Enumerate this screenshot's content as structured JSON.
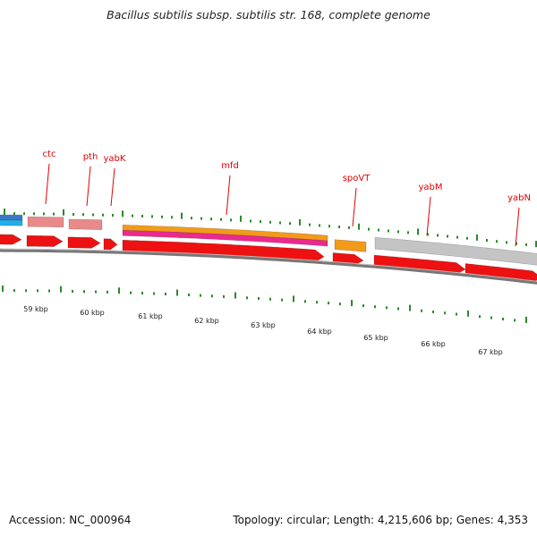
{
  "header": {
    "title": "Bacillus subtilis subsp. subtilis str. 168, complete genome"
  },
  "footer": {
    "accession": "Accession: NC_000964",
    "summary": "Topology: circular; Length: 4,215,606 bp; Genes: 4,353"
  },
  "colors": {
    "cds": "#ee1111",
    "gene_label": "#e00000",
    "tick": "#2a8a2a",
    "backbone": "#777777",
    "salmon": "#e88a8a",
    "orange": "#f39a1a",
    "magenta": "#ea2a8e",
    "gray_feature": "#c4c4c4",
    "blue": "#3a78c8",
    "cyan": "#1fb0ea"
  },
  "gene_labels": [
    "ctc",
    "pth",
    "yabK",
    "mfd",
    "spoVT",
    "yabM",
    "yabN"
  ],
  "kbp_labels": [
    "59 kbp",
    "60 kbp",
    "61 kbp",
    "62 kbp",
    "63 kbp",
    "64 kbp",
    "65 kbp",
    "66 kbp",
    "67 kbp"
  ]
}
